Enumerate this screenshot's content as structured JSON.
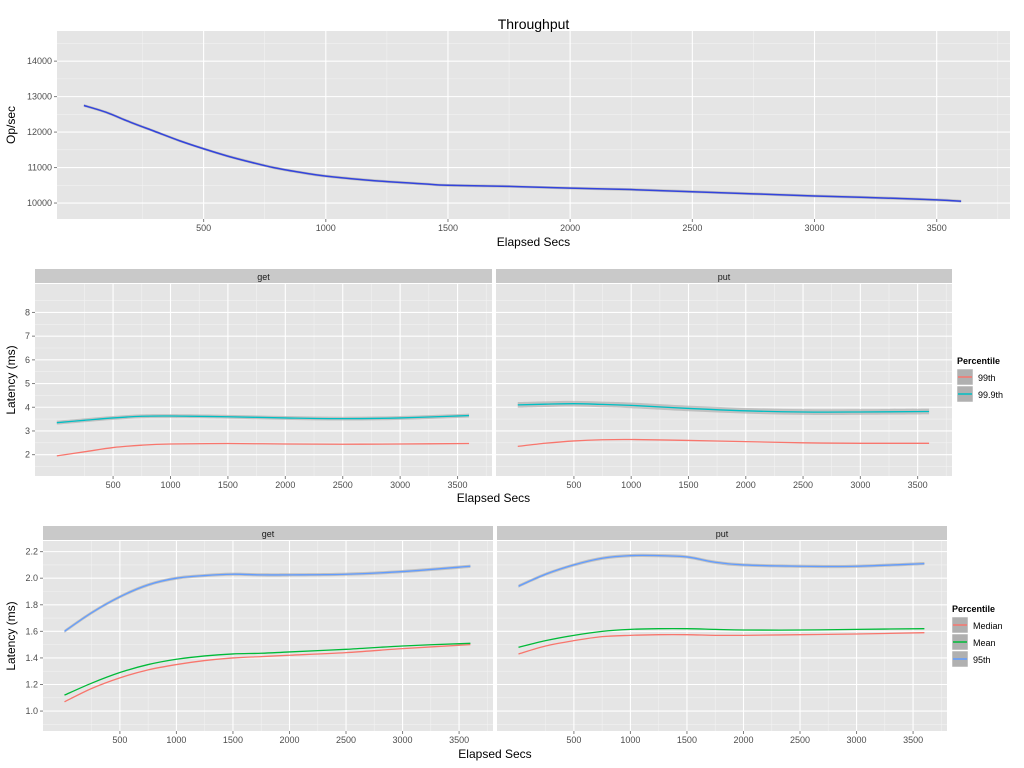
{
  "colors": {
    "panel_bg": "#e5e5e5",
    "grid_major": "#ffffff",
    "grid_minor": "#f2f2f2",
    "strip_bg": "#c9c9c9",
    "ribbon": "#b0b0b0",
    "throughput_line": "#3344dd"
  },
  "chart_data": [
    {
      "type": "line",
      "title": "Throughput",
      "xlabel": "Elapsed Secs",
      "ylabel": "Op/sec",
      "xlim": [
        -100,
        3800
      ],
      "ylim": [
        9550,
        14850
      ],
      "x_ticks": [
        500,
        1000,
        1500,
        2000,
        2500,
        3000,
        3500
      ],
      "y_ticks": [
        10000,
        11000,
        12000,
        13000,
        14000
      ],
      "grid": true,
      "series": [
        {
          "color": "#3344dd",
          "band": 40,
          "x": [
            10,
            100,
            200,
            300,
            400,
            500,
            600,
            700,
            800,
            900,
            1000,
            1200,
            1400,
            1500,
            1750,
            2000,
            2250,
            2500,
            2750,
            3000,
            3250,
            3500,
            3600
          ],
          "y": [
            12750,
            12560,
            12280,
            12020,
            11760,
            11530,
            11320,
            11140,
            10980,
            10860,
            10760,
            10630,
            10540,
            10500,
            10470,
            10420,
            10380,
            10320,
            10260,
            10200,
            10150,
            10090,
            10050
          ]
        }
      ]
    },
    {
      "type": "line",
      "xlabel": "Elapsed Secs",
      "ylabel": "Latency (ms)",
      "xlim": [
        -180,
        3800
      ],
      "ylim": [
        1.1,
        9.2
      ],
      "x_ticks": [
        500,
        1000,
        1500,
        2000,
        2500,
        3000,
        3500
      ],
      "y_ticks": [
        2,
        3,
        4,
        5,
        6,
        7,
        8
      ],
      "grid": true,
      "legend": {
        "title": "Percentile",
        "position": "right",
        "entries": [
          "99th",
          "99.9th"
        ],
        "colors": [
          "#f8766d",
          "#00bfc4"
        ]
      },
      "facets": [
        {
          "label": "get",
          "series": [
            {
              "name": "99th",
              "color": "#f8766d",
              "band": 0,
              "x": [
                10,
                250,
                500,
                750,
                1000,
                1500,
                2000,
                2500,
                3000,
                3600
              ],
              "y": [
                1.95,
                2.12,
                2.3,
                2.4,
                2.45,
                2.47,
                2.45,
                2.44,
                2.45,
                2.47
              ]
            },
            {
              "name": "99.9th",
              "color": "#00bfc4",
              "band": 0.08,
              "x": [
                10,
                250,
                500,
                750,
                1000,
                1500,
                2000,
                2500,
                3000,
                3600
              ],
              "y": [
                3.35,
                3.45,
                3.55,
                3.62,
                3.63,
                3.6,
                3.55,
                3.52,
                3.55,
                3.65
              ]
            }
          ]
        },
        {
          "label": "put",
          "series": [
            {
              "name": "99th",
              "color": "#f8766d",
              "band": 0,
              "x": [
                10,
                250,
                500,
                750,
                1000,
                1500,
                2000,
                2500,
                3000,
                3600
              ],
              "y": [
                2.35,
                2.48,
                2.58,
                2.63,
                2.64,
                2.6,
                2.55,
                2.5,
                2.48,
                2.48
              ]
            },
            {
              "name": "99.9th",
              "color": "#00bfc4",
              "band": 0.12,
              "x": [
                10,
                250,
                500,
                750,
                1000,
                1500,
                2000,
                2500,
                3000,
                3600
              ],
              "y": [
                4.1,
                4.13,
                4.15,
                4.12,
                4.08,
                3.95,
                3.85,
                3.8,
                3.8,
                3.82
              ]
            }
          ]
        }
      ]
    },
    {
      "type": "line",
      "xlabel": "Elapsed Secs",
      "ylabel": "Latency (ms)",
      "xlim": [
        -180,
        3800
      ],
      "ylim": [
        0.85,
        2.28
      ],
      "x_ticks": [
        500,
        1000,
        1500,
        2000,
        2500,
        3000,
        3500
      ],
      "y_ticks": [
        1.0,
        1.2,
        1.4,
        1.6,
        1.8,
        2.0,
        2.2
      ],
      "y_tick_labels": [
        "1.0",
        "1.2",
        "1.4",
        "1.6",
        "1.8",
        "2.0",
        "2.2"
      ],
      "grid": true,
      "legend": {
        "title": "Percentile",
        "position": "right",
        "entries": [
          "Median",
          "Mean",
          "95th"
        ],
        "colors": [
          "#f8766d",
          "#00ba38",
          "#619cff"
        ]
      },
      "facets": [
        {
          "label": "get",
          "series": [
            {
              "name": "Median",
              "color": "#f8766d",
              "band": 0,
              "x": [
                10,
                250,
                500,
                750,
                1000,
                1250,
                1500,
                1750,
                2000,
                2500,
                3000,
                3600
              ],
              "y": [
                1.07,
                1.17,
                1.25,
                1.31,
                1.35,
                1.38,
                1.4,
                1.41,
                1.42,
                1.44,
                1.47,
                1.5
              ]
            },
            {
              "name": "Mean",
              "color": "#00ba38",
              "band": 0,
              "x": [
                10,
                250,
                500,
                750,
                1000,
                1250,
                1500,
                1750,
                2000,
                2500,
                3000,
                3600
              ],
              "y": [
                1.12,
                1.21,
                1.29,
                1.35,
                1.39,
                1.415,
                1.43,
                1.435,
                1.445,
                1.465,
                1.49,
                1.51
              ]
            },
            {
              "name": "95th",
              "color": "#619cff",
              "band": 0.012,
              "x": [
                10,
                250,
                500,
                750,
                1000,
                1250,
                1500,
                1750,
                2000,
                2500,
                3000,
                3600
              ],
              "y": [
                1.6,
                1.74,
                1.86,
                1.95,
                2.0,
                2.02,
                2.03,
                2.025,
                2.025,
                2.03,
                2.05,
                2.09
              ]
            }
          ]
        },
        {
          "label": "put",
          "series": [
            {
              "name": "Median",
              "color": "#f8766d",
              "band": 0,
              "x": [
                10,
                250,
                500,
                750,
                1000,
                1250,
                1500,
                1750,
                2000,
                2500,
                3000,
                3600
              ],
              "y": [
                1.43,
                1.49,
                1.53,
                1.56,
                1.57,
                1.575,
                1.575,
                1.57,
                1.57,
                1.575,
                1.58,
                1.59
              ]
            },
            {
              "name": "Mean",
              "color": "#00ba38",
              "band": 0,
              "x": [
                10,
                250,
                500,
                750,
                1000,
                1250,
                1500,
                1750,
                2000,
                2500,
                3000,
                3600
              ],
              "y": [
                1.48,
                1.53,
                1.57,
                1.6,
                1.615,
                1.62,
                1.62,
                1.615,
                1.61,
                1.61,
                1.615,
                1.62
              ]
            },
            {
              "name": "95th",
              "color": "#619cff",
              "band": 0.012,
              "x": [
                10,
                250,
                500,
                750,
                1000,
                1250,
                1500,
                1750,
                2000,
                2500,
                3000,
                3600
              ],
              "y": [
                1.94,
                2.03,
                2.1,
                2.15,
                2.17,
                2.17,
                2.16,
                2.12,
                2.1,
                2.09,
                2.09,
                2.11
              ]
            }
          ]
        }
      ]
    }
  ]
}
